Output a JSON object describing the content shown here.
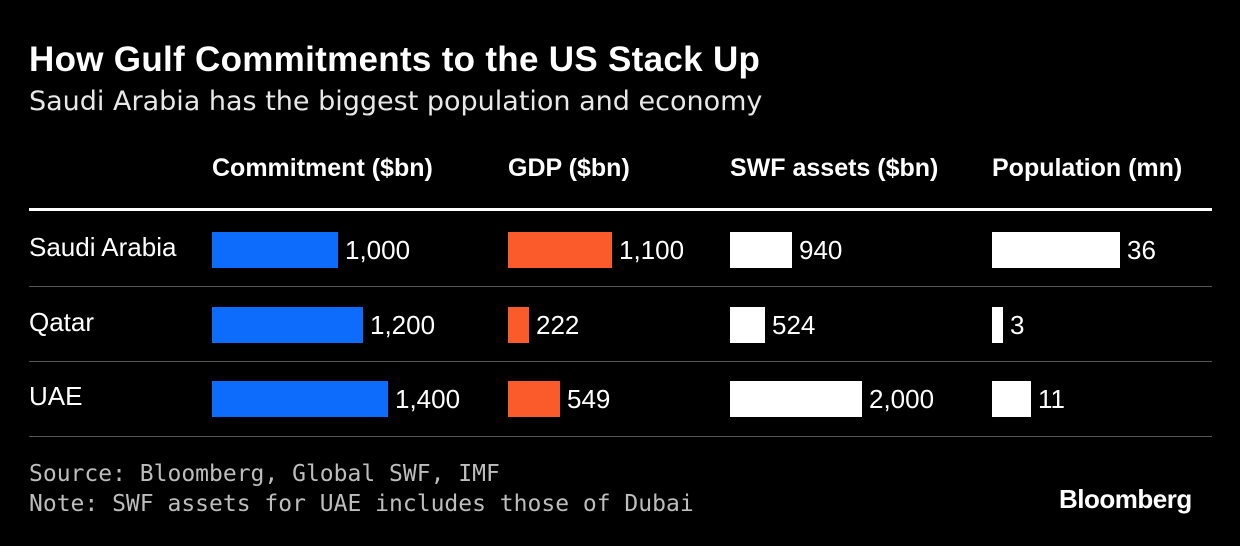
{
  "header": {
    "title": "How Gulf Commitments to the US Stack Up",
    "subtitle": "Saudi Arabia has the biggest population and economy"
  },
  "chart_data": {
    "type": "table",
    "title": "How Gulf Commitments to the US Stack Up",
    "subtitle": "Saudi Arabia has the biggest population and economy",
    "rows": [
      "Saudi Arabia",
      "Qatar",
      "UAE"
    ],
    "columns": [
      {
        "key": "commitment",
        "name": "Commitment ($bn)",
        "color": "#0d6cfb",
        "values": [
          1000,
          1200,
          1400
        ],
        "labels": [
          "1,000",
          "1,200",
          "1,400"
        ]
      },
      {
        "key": "gdp",
        "name": "GDP ($bn)",
        "color": "#fb5a2a",
        "values": [
          1100,
          222,
          549
        ],
        "labels": [
          "1,100",
          "222",
          "549"
        ]
      },
      {
        "key": "swf",
        "name": "SWF assets ($bn)",
        "color": "#ffffff",
        "values": [
          940,
          524,
          2000
        ],
        "labels": [
          "940",
          "524",
          "2,000"
        ]
      },
      {
        "key": "population",
        "name": "Population (mn)",
        "color": "#ffffff",
        "values": [
          36,
          3,
          11
        ],
        "labels": [
          "36",
          "3",
          "11"
        ]
      }
    ]
  },
  "footer": {
    "source": "Source: Bloomberg, Global SWF, IMF",
    "note": "Note: SWF assets for UAE includes those of Dubai",
    "brand": "Bloomberg"
  }
}
